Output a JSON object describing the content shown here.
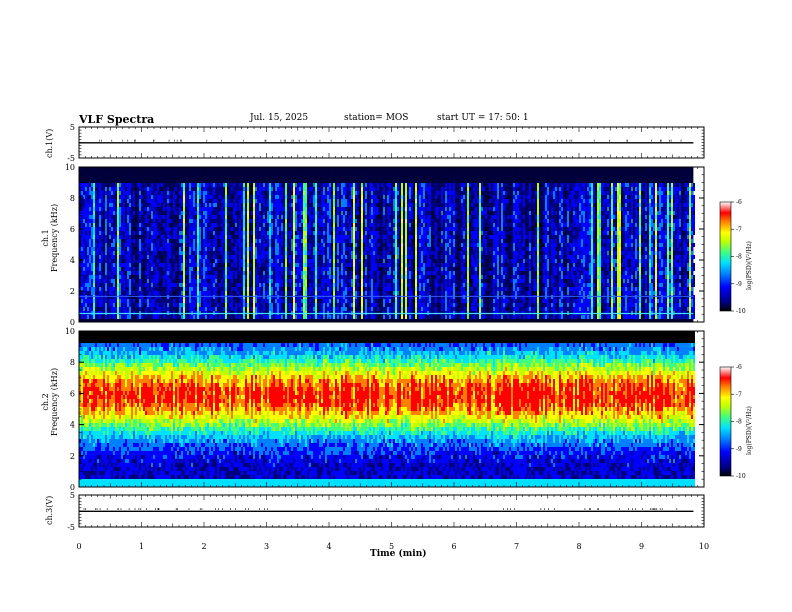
{
  "header": {
    "title": "VLF Spectra",
    "date": "Jul. 15, 2025",
    "station": "station= MOS",
    "start": "start UT =  17: 50: 1"
  },
  "colors": {
    "spectrum": [
      "#000000",
      "#00007f",
      "#0000ff",
      "#0080ff",
      "#00e0ff",
      "#40ff80",
      "#c0ff00",
      "#ffff00",
      "#ff8000",
      "#ff0000",
      "#ffffff"
    ]
  },
  "chart_data": [
    {
      "type": "line",
      "panel": "ch1-waveform",
      "ylabel": "ch.1(V)",
      "ylim": [
        -5,
        5
      ],
      "yticks": [
        "5",
        "-5"
      ],
      "series": [
        {
          "values": [
            -0.1,
            -0.1,
            -0.1,
            -0.1,
            -0.1,
            -0.1,
            -0.1,
            -0.1,
            -0.1,
            -0.1
          ]
        }
      ]
    },
    {
      "type": "heatmap",
      "panel": "ch1-spectrum",
      "ylabel": "ch.1\nFrequency (kHz)",
      "ylim": [
        0,
        10
      ],
      "yticks": [
        "0",
        "2",
        "4",
        "6",
        "8",
        "10"
      ],
      "colorbar": {
        "label": "log(PSD)(V²/Hz)",
        "range": [
          -10,
          -6
        ],
        "ticks": [
          "-6",
          "-7",
          "-8",
          "-9",
          "-10"
        ]
      },
      "description_band_kHz": [
        0.5,
        9.5
      ],
      "mean_log_psd": -9.3
    },
    {
      "type": "heatmap",
      "panel": "ch2-spectrum",
      "ylabel": "ch.2\nFrequency (kHz)",
      "ylim": [
        0,
        10
      ],
      "yticks": [
        "0",
        "2",
        "4",
        "6",
        "8",
        "10"
      ],
      "colorbar": {
        "label": "log(PSD)(V²/Hz)",
        "range": [
          -10,
          -6
        ],
        "ticks": [
          "-6",
          "-7",
          "-8",
          "-9",
          "-10"
        ]
      },
      "peak_band_kHz": [
        4.5,
        7.5
      ],
      "peak_log_psd": -7
    },
    {
      "type": "line",
      "panel": "ch3-waveform",
      "ylabel": "ch.3(V)",
      "ylim": [
        -5,
        5
      ],
      "yticks": [
        "5",
        "-5"
      ],
      "series": [
        {
          "values": [
            -0.1,
            -0.1,
            -0.1,
            -0.1,
            -0.1,
            -0.1,
            -0.1,
            -0.1,
            -0.1,
            -0.1
          ]
        }
      ]
    }
  ],
  "xaxis": {
    "label": "Time (min)",
    "ticks": [
      "0",
      "1",
      "2",
      "3",
      "4",
      "5",
      "6",
      "7",
      "8",
      "9",
      "10"
    ],
    "range": [
      0,
      10
    ],
    "data_end": 9.83
  }
}
